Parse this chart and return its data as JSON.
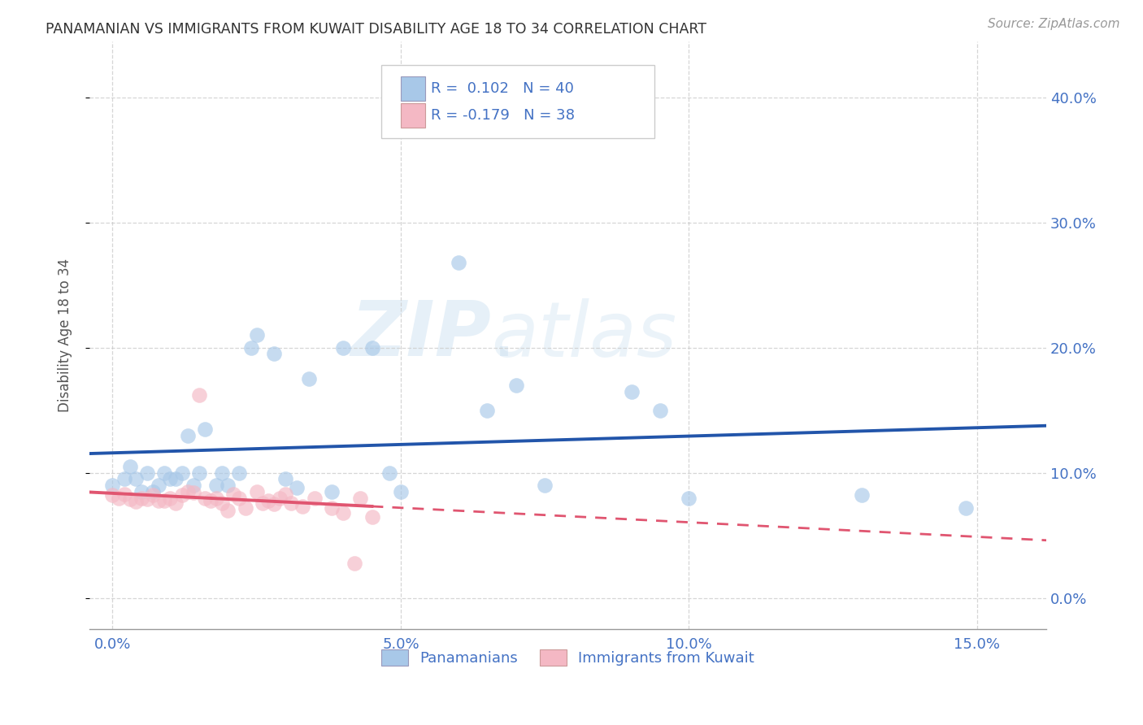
{
  "title": "PANAMANIAN VS IMMIGRANTS FROM KUWAIT DISABILITY AGE 18 TO 34 CORRELATION CHART",
  "source": "Source: ZipAtlas.com",
  "xlabel_ticks": [
    "0.0%",
    "5.0%",
    "10.0%",
    "15.0%"
  ],
  "xlabel_tick_vals": [
    0.0,
    0.05,
    0.1,
    0.15
  ],
  "ylabel_ticks": [
    "0.0%",
    "10.0%",
    "20.0%",
    "30.0%",
    "40.0%"
  ],
  "ylabel_tick_vals": [
    0.0,
    0.1,
    0.2,
    0.3,
    0.4
  ],
  "xlim": [
    -0.004,
    0.162
  ],
  "ylim": [
    -0.025,
    0.445
  ],
  "legend_label1": "Panamanians",
  "legend_label2": "Immigrants from Kuwait",
  "r1": 0.102,
  "n1": 40,
  "r2": -0.179,
  "n2": 38,
  "blue_color": "#a8c8e8",
  "pink_color": "#f4b8c4",
  "blue_line_color": "#2255aa",
  "pink_line_color": "#e05570",
  "watermark_zip": "ZIP",
  "watermark_atlas": "atlas",
  "background_color": "#ffffff",
  "grid_color": "#cccccc",
  "blue_scatter_x": [
    0.0,
    0.002,
    0.003,
    0.004,
    0.005,
    0.006,
    0.007,
    0.008,
    0.009,
    0.01,
    0.011,
    0.012,
    0.013,
    0.014,
    0.015,
    0.016,
    0.018,
    0.019,
    0.02,
    0.022,
    0.024,
    0.025,
    0.028,
    0.03,
    0.032,
    0.034,
    0.038,
    0.04,
    0.045,
    0.048,
    0.05,
    0.06,
    0.065,
    0.07,
    0.075,
    0.09,
    0.095,
    0.1,
    0.13,
    0.148
  ],
  "blue_scatter_y": [
    0.09,
    0.095,
    0.105,
    0.095,
    0.085,
    0.1,
    0.085,
    0.09,
    0.1,
    0.095,
    0.095,
    0.1,
    0.13,
    0.09,
    0.1,
    0.135,
    0.09,
    0.1,
    0.09,
    0.1,
    0.2,
    0.21,
    0.195,
    0.095,
    0.088,
    0.175,
    0.085,
    0.2,
    0.2,
    0.1,
    0.085,
    0.268,
    0.15,
    0.17,
    0.09,
    0.165,
    0.15,
    0.08,
    0.082,
    0.072
  ],
  "pink_scatter_x": [
    0.0,
    0.001,
    0.002,
    0.003,
    0.004,
    0.005,
    0.006,
    0.007,
    0.008,
    0.009,
    0.01,
    0.011,
    0.012,
    0.013,
    0.014,
    0.015,
    0.016,
    0.017,
    0.018,
    0.019,
    0.02,
    0.021,
    0.022,
    0.023,
    0.025,
    0.026,
    0.027,
    0.028,
    0.029,
    0.03,
    0.031,
    0.033,
    0.035,
    0.038,
    0.04,
    0.042,
    0.043,
    0.045
  ],
  "pink_scatter_y": [
    0.082,
    0.08,
    0.083,
    0.079,
    0.077,
    0.08,
    0.079,
    0.082,
    0.078,
    0.078,
    0.08,
    0.076,
    0.082,
    0.085,
    0.084,
    0.162,
    0.08,
    0.078,
    0.08,
    0.076,
    0.07,
    0.083,
    0.08,
    0.072,
    0.085,
    0.076,
    0.078,
    0.075,
    0.08,
    0.083,
    0.076,
    0.073,
    0.08,
    0.072,
    0.068,
    0.028,
    0.08,
    0.065
  ]
}
